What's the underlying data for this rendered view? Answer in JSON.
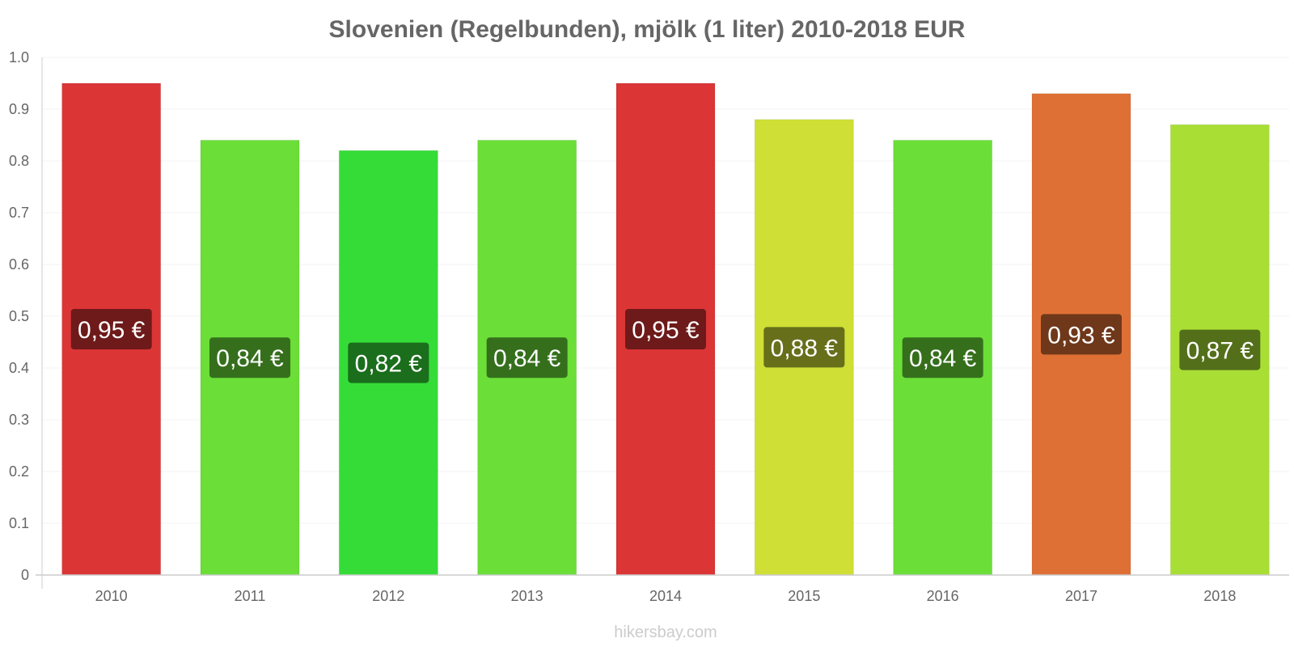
{
  "chart_data": {
    "type": "bar",
    "title": "Slovenien (Regelbunden), mjölk (1 liter) 2010-2018 EUR",
    "xlabel": "",
    "ylabel": "",
    "categories": [
      "2010",
      "2011",
      "2012",
      "2013",
      "2014",
      "2015",
      "2016",
      "2017",
      "2018"
    ],
    "values": [
      0.95,
      0.84,
      0.82,
      0.84,
      0.95,
      0.88,
      0.84,
      0.93,
      0.87
    ],
    "data_labels": [
      "0,95 €",
      "0,84 €",
      "0,82 €",
      "0,84 €",
      "0,95 €",
      "0,88 €",
      "0,84 €",
      "0,93 €",
      "0,87 €"
    ],
    "bar_colors": [
      "#dc3535",
      "#6bde38",
      "#35dc38",
      "#6bde38",
      "#dc3535",
      "#cfdf36",
      "#6bde38",
      "#df7035",
      "#a9df35"
    ],
    "label_colors": [
      "#6e1a1a",
      "#356f1c",
      "#1a6e1c",
      "#356f1c",
      "#6e1a1a",
      "#676f1b",
      "#356f1c",
      "#6f381a",
      "#546f1a"
    ],
    "ylim": [
      0,
      1.0
    ],
    "yticks": [
      "0",
      "0.1",
      "0.2",
      "0.3",
      "0.4",
      "0.5",
      "0.6",
      "0.7",
      "0.8",
      "0.9",
      "1.0"
    ],
    "grid": true,
    "legend": "none"
  },
  "watermark": "hikersbay.com"
}
